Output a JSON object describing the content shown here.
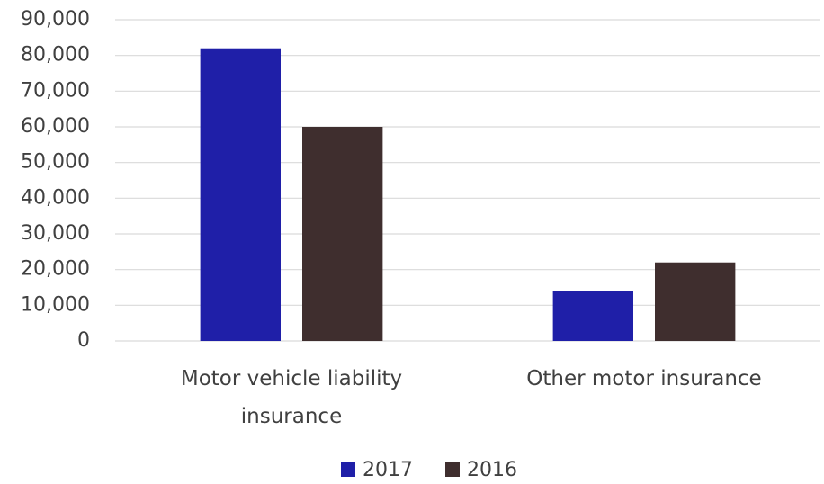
{
  "chart_data": {
    "type": "bar",
    "categories": [
      "Motor vehicle liability insurance",
      "Other motor insurance"
    ],
    "series": [
      {
        "name": "2017",
        "color": "#1f1fa8",
        "values": [
          82000,
          14000
        ]
      },
      {
        "name": "2016",
        "color": "#3f2e2e",
        "values": [
          60000,
          22000
        ]
      }
    ],
    "ylim": [
      0,
      90000
    ],
    "yticks": [
      0,
      {
        "value": 10000,
        "label": "10,000"
      },
      {
        "value": 20000,
        "label": "20,000"
      },
      {
        "value": 30000,
        "label": "30,000"
      },
      {
        "value": 40000,
        "label": "40,000"
      },
      {
        "value": 50000,
        "label": "50,000"
      },
      {
        "value": 60000,
        "label": "60,000"
      },
      {
        "value": 70000,
        "label": "70,000"
      },
      {
        "value": 80000,
        "label": "80,000"
      },
      {
        "value": 90000,
        "label": "90,000"
      }
    ],
    "grid": true,
    "legend": "bottom"
  }
}
